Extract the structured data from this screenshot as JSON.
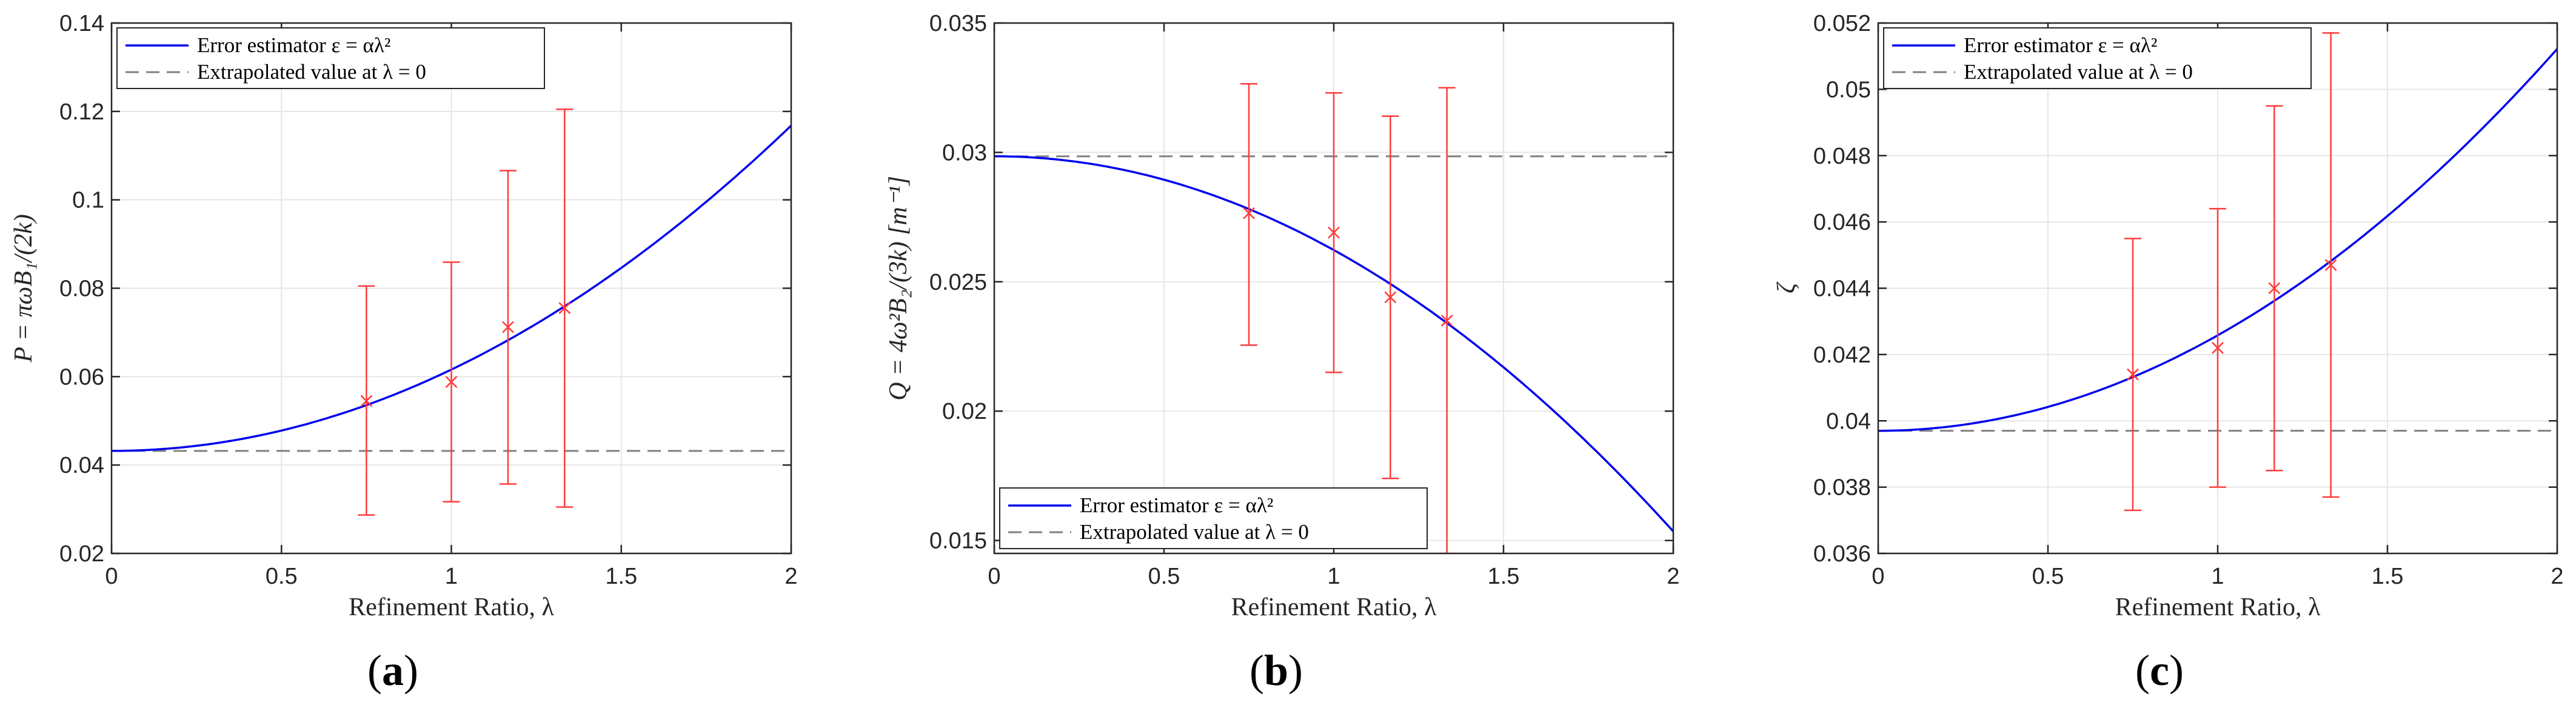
{
  "colors": {
    "fit": "#0000ee",
    "reference": "#808080",
    "data": "#ff3b3b",
    "grid": "#e6e6e6",
    "axis": "#262626"
  },
  "chart_data": [
    {
      "id": "a",
      "type": "line",
      "panel_label": "(a)",
      "panel_letter": "a",
      "xlabel": "Refinement Ratio, λ",
      "ylabel": "P = πωB₁/(2k)",
      "xlim": [
        0,
        2
      ],
      "ylim": [
        0.02,
        0.14
      ],
      "xticks": [
        0,
        0.5,
        1,
        1.5,
        2
      ],
      "xtick_labels": [
        "0",
        "0.5",
        "1",
        "1.5",
        "2"
      ],
      "yticks": [
        0.02,
        0.04,
        0.06,
        0.08,
        0.1,
        0.12,
        0.14
      ],
      "ytick_labels": [
        "0.02",
        "0.04",
        "0.06",
        "0.08",
        "0.1",
        "0.12",
        "0.14"
      ],
      "grid": true,
      "legend_position": "top-left",
      "legend": [
        "Error estimator ε = αλ²",
        "Extrapolated value at λ = 0"
      ],
      "estimator": {
        "value_at_zero": 0.0432,
        "alpha": 0.0184
      },
      "extrapolated_value": 0.0432,
      "points": [
        {
          "x": 0.75,
          "y": 0.0545,
          "lower": 0.0287,
          "upper": 0.0805
        },
        {
          "x": 1.0,
          "y": 0.0588,
          "lower": 0.0317,
          "upper": 0.0859
        },
        {
          "x": 1.1667,
          "y": 0.0712,
          "lower": 0.0357,
          "upper": 0.1066
        },
        {
          "x": 1.3333,
          "y": 0.0755,
          "lower": 0.0305,
          "upper": 0.1205
        }
      ]
    },
    {
      "id": "b",
      "type": "line",
      "panel_label": "(b)",
      "panel_letter": "b",
      "xlabel": "Refinement Ratio, λ",
      "ylabel": "Q = 4ω²B₂/(3k) [m⁻¹]",
      "xlim": [
        0,
        2
      ],
      "ylim": [
        0.0145,
        0.035
      ],
      "xticks": [
        0,
        0.5,
        1,
        1.5,
        2
      ],
      "xtick_labels": [
        "0",
        "0.5",
        "1",
        "1.5",
        "2"
      ],
      "yticks": [
        0.015,
        0.02,
        0.025,
        0.03,
        0.035
      ],
      "ytick_labels": [
        "0.015",
        "0.02",
        "0.025",
        "0.03",
        "0.035"
      ],
      "grid": true,
      "legend_position": "bottom-left",
      "legend": [
        "Error estimator ε = αλ²",
        "Extrapolated value at λ = 0"
      ],
      "estimator": {
        "value_at_zero": 0.02985,
        "alpha": -0.003625
      },
      "extrapolated_value": 0.02985,
      "points": [
        {
          "x": 0.75,
          "y": 0.02765,
          "lower": 0.02255,
          "upper": 0.03265
        },
        {
          "x": 1.0,
          "y": 0.0269,
          "lower": 0.0215,
          "upper": 0.0323
        },
        {
          "x": 1.1667,
          "y": 0.0244,
          "lower": 0.0174,
          "upper": 0.0314
        },
        {
          "x": 1.3333,
          "y": 0.0235,
          "lower": 0.0145,
          "upper": 0.0325
        }
      ]
    },
    {
      "id": "c",
      "type": "line",
      "panel_label": "(c)",
      "panel_letter": "c",
      "xlabel": "Refinement Ratio, λ",
      "ylabel": "ζ",
      "xlim": [
        0,
        2
      ],
      "ylim": [
        0.036,
        0.052
      ],
      "xticks": [
        0,
        0.5,
        1,
        1.5,
        2
      ],
      "xtick_labels": [
        "0",
        "0.5",
        "1",
        "1.5",
        "2"
      ],
      "yticks": [
        0.036,
        0.038,
        0.04,
        0.042,
        0.044,
        0.046,
        0.048,
        0.05,
        0.052
      ],
      "ytick_labels": [
        "0.036",
        "0.038",
        "0.04",
        "0.042",
        "0.044",
        "0.046",
        "0.048",
        "0.05",
        "0.052"
      ],
      "grid": true,
      "legend_position": "top-left",
      "legend": [
        "Error estimator ε = αλ²",
        "Extrapolated value at λ = 0"
      ],
      "estimator": {
        "value_at_zero": 0.0397,
        "alpha": 0.00288
      },
      "extrapolated_value": 0.0397,
      "points": [
        {
          "x": 0.75,
          "y": 0.0414,
          "lower": 0.0373,
          "upper": 0.0455
        },
        {
          "x": 1.0,
          "y": 0.0422,
          "lower": 0.038,
          "upper": 0.0464
        },
        {
          "x": 1.1667,
          "y": 0.044,
          "lower": 0.0385,
          "upper": 0.0495
        },
        {
          "x": 1.3333,
          "y": 0.0447,
          "lower": 0.0377,
          "upper": 0.0517
        }
      ]
    }
  ]
}
